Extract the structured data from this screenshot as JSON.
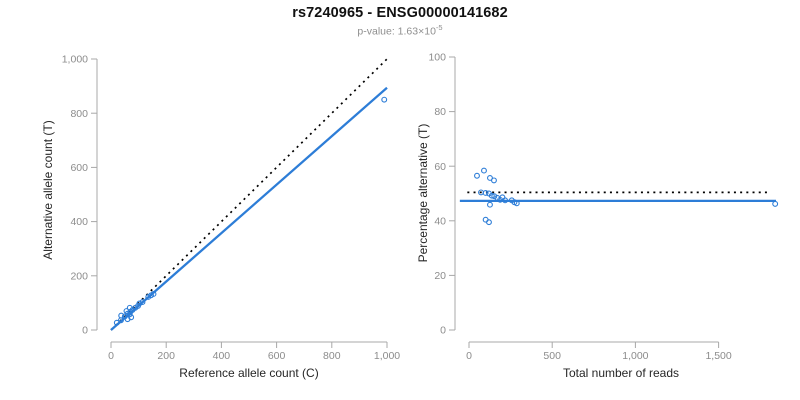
{
  "header": {
    "title": "rs7240965 - ENSG00000141682",
    "pvalue_base": "p-value: 1.63×10",
    "pvalue_exponent": "-5"
  },
  "colors": {
    "accent_blue": "#2D7DD7",
    "dotted_black": "#000000",
    "axis_gray": "#a8a8a8",
    "tick_text_gray": "#8c8c8c",
    "axis_title_dark": "#262626",
    "title_black": "#111111",
    "subtitle_gray": "#8f8f8f"
  },
  "chart_data": [
    {
      "type": "scatter",
      "panel": "left",
      "xlabel": "Reference allele count (C)",
      "ylabel": "Alternative allele count (T)",
      "xlim": [
        0,
        1000
      ],
      "ylim": [
        0,
        1000
      ],
      "xtick_values": [
        0,
        200,
        400,
        600,
        800,
        1000
      ],
      "xtick_labels": [
        "0",
        "200",
        "400",
        "600",
        "800",
        "1,000"
      ],
      "ytick_values": [
        0,
        200,
        400,
        600,
        800,
        1000
      ],
      "ytick_labels": [
        "0",
        "200",
        "400",
        "600",
        "800",
        "1,000"
      ],
      "grid": false,
      "point_color": "#2D7DD7",
      "points": [
        [
          21,
          27
        ],
        [
          37,
          53
        ],
        [
          56,
          70
        ],
        [
          68,
          82
        ],
        [
          36,
          36
        ],
        [
          50,
          50
        ],
        [
          60,
          60
        ],
        [
          70,
          67
        ],
        [
          78,
          74
        ],
        [
          88,
          82
        ],
        [
          98,
          89
        ],
        [
          103,
          98
        ],
        [
          114,
          103
        ],
        [
          135,
          122
        ],
        [
          145,
          128
        ],
        [
          154,
          133
        ],
        [
          68,
          58
        ],
        [
          60,
          40
        ],
        [
          73,
          47
        ],
        [
          990,
          850
        ]
      ],
      "lines": [
        {
          "name": "identity-line",
          "style": "dotted",
          "color": "#000000",
          "x": [
            0,
            1005
          ],
          "y": [
            0,
            1005
          ]
        },
        {
          "name": "regression-line",
          "style": "solid",
          "color": "#2D7DD7",
          "x": [
            0,
            1000
          ],
          "y": [
            0,
            894
          ]
        }
      ]
    },
    {
      "type": "scatter",
      "panel": "right",
      "xlabel": "Total number of reads",
      "ylabel": "Percentage alternative (T)",
      "xlim": [
        0,
        1500
      ],
      "ylim": [
        0,
        100
      ],
      "xtick_values": [
        0,
        500,
        1000,
        1500
      ],
      "xtick_labels": [
        "0",
        "500",
        "1,000",
        "1,500"
      ],
      "ytick_values": [
        0,
        20,
        40,
        60,
        80,
        100
      ],
      "ytick_labels": [
        "0",
        "20",
        "40",
        "60",
        "80",
        "100"
      ],
      "grid": false,
      "point_color": "#2D7DD7",
      "points": [
        [
          48,
          56.5
        ],
        [
          90,
          58.4
        ],
        [
          126,
          55.7
        ],
        [
          150,
          54.8
        ],
        [
          72,
          50.4
        ],
        [
          100,
          50.2
        ],
        [
          120,
          50
        ],
        [
          137,
          49.2
        ],
        [
          152,
          49
        ],
        [
          170,
          48.4
        ],
        [
          187,
          47.7
        ],
        [
          201,
          48.6
        ],
        [
          217,
          47.5
        ],
        [
          257,
          47.5
        ],
        [
          273,
          46.8
        ],
        [
          287,
          46.4
        ],
        [
          126,
          45.9
        ],
        [
          100,
          40.4
        ],
        [
          120,
          39.5
        ],
        [
          1840,
          46.2
        ]
      ],
      "lines": [
        {
          "name": "expected-percentage-line",
          "style": "dotted",
          "color": "#000000",
          "x": [
            -10,
            1810
          ],
          "y": [
            50.4,
            50.4
          ]
        },
        {
          "name": "fitted-percentage-line",
          "style": "solid",
          "color": "#2D7DD7",
          "x": [
            -55,
            1845
          ],
          "y": [
            47.3,
            47.3
          ]
        }
      ]
    }
  ]
}
